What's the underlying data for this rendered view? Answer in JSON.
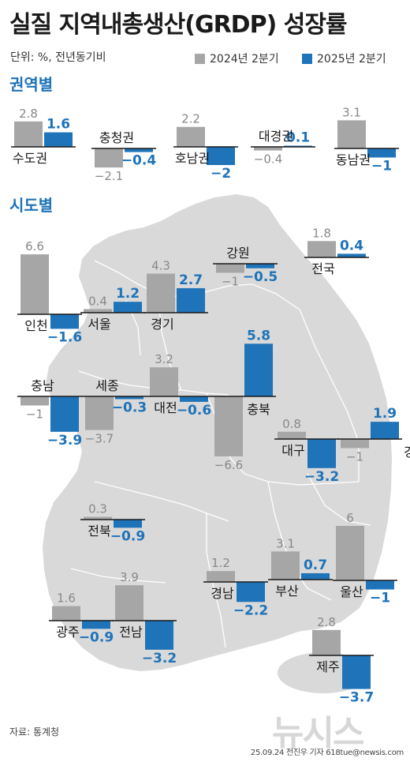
{
  "header": {
    "title": "실질 지역내총생산(GRDP) 성장률",
    "unit": "단위: %, 전년동기비"
  },
  "legend": {
    "items": [
      {
        "label": "2024년 2분기",
        "color": "#a6a6a6"
      },
      {
        "label": "2025년 2분기",
        "color": "#1e73b9"
      }
    ]
  },
  "sections": {
    "zones": "권역별",
    "provinces": "시도별"
  },
  "colors": {
    "prev": "#a6a6a6",
    "curr": "#1e73b9",
    "map": "#d9d9d9",
    "prev_text": "#888888",
    "curr_text": "#1e73b9"
  },
  "footer": {
    "source": "자료: 통계청",
    "credit": "25.09.24 전진우 기자 618tue@newsis.com",
    "watermark": "뉴시스"
  },
  "chart_data": {
    "type": "bar",
    "series_names": [
      "2024년 2분기",
      "2025년 2분기"
    ],
    "unit": "%",
    "regional": [
      {
        "name": "수도권",
        "prev": 2.8,
        "curr": 1.6
      },
      {
        "name": "충청권",
        "prev": -2.1,
        "curr": -0.4
      },
      {
        "name": "호남권",
        "prev": 2.2,
        "curr": -2.0
      },
      {
        "name": "대경권",
        "prev": -0.4,
        "curr": 0.1
      },
      {
        "name": "동남권",
        "prev": 3.1,
        "curr": -1.0
      }
    ],
    "national": {
      "name": "전국",
      "prev": 1.8,
      "curr": 0.4
    },
    "provinces": [
      {
        "name": "인천",
        "prev": 6.6,
        "curr": -1.6
      },
      {
        "name": "서울",
        "prev": 0.4,
        "curr": 1.2
      },
      {
        "name": "경기",
        "prev": 4.3,
        "curr": 2.7
      },
      {
        "name": "강원",
        "prev": -1,
        "curr": -0.5
      },
      {
        "name": "충남",
        "prev": -1,
        "curr": -3.9
      },
      {
        "name": "세종",
        "prev": -3.7,
        "curr": -0.3
      },
      {
        "name": "대전",
        "prev": 3.2,
        "curr": -0.6
      },
      {
        "name": "충북",
        "prev": -6.6,
        "curr": 5.8
      },
      {
        "name": "대구",
        "prev": 0.8,
        "curr": -3.2
      },
      {
        "name": "경북",
        "prev": -1,
        "curr": 1.9
      },
      {
        "name": "전북",
        "prev": 0.3,
        "curr": -0.9
      },
      {
        "name": "울산",
        "prev": 6,
        "curr": -1.0
      },
      {
        "name": "경남",
        "prev": 1.2,
        "curr": -2.2
      },
      {
        "name": "부산",
        "prev": 3.1,
        "curr": 0.7
      },
      {
        "name": "광주",
        "prev": 1.6,
        "curr": -0.9
      },
      {
        "name": "전남",
        "prev": 3.9,
        "curr": -3.2
      },
      {
        "name": "제주",
        "prev": 2.8,
        "curr": -3.7
      }
    ]
  }
}
